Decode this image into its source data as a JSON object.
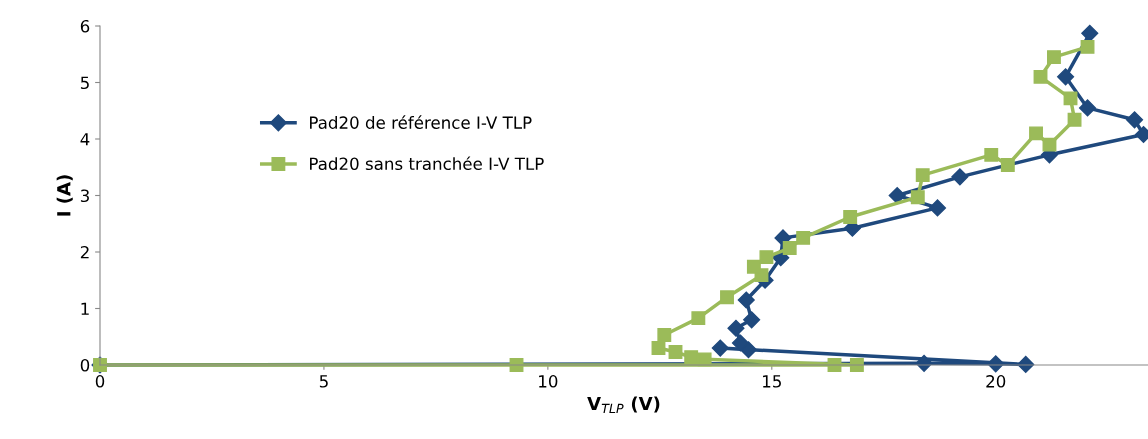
{
  "chart_data": {
    "type": "line",
    "xlabel": "V$_{TLP}$ (V)",
    "ylabel": "I (A)",
    "xlim": [
      0,
      23.4
    ],
    "xticks": [
      0,
      5,
      10,
      15,
      20
    ],
    "ylim": [
      0,
      6
    ],
    "yticks": [
      0,
      1,
      2,
      3,
      4,
      5,
      6
    ],
    "grid": false,
    "legend": "left",
    "line_style": "solid",
    "series": [
      {
        "name": "Pad20 de référence I-V TLP",
        "color": "#1f497d",
        "marker": "diamond",
        "x": [
          0,
          18.4,
          20.0,
          20.67,
          13.85,
          14.48,
          14.3,
          14.2,
          14.55,
          14.43,
          14.85,
          15.2,
          15.25,
          16.8,
          18.7,
          17.8,
          19.2,
          21.2,
          23.3,
          23.1,
          22.05,
          21.56,
          22.1
        ],
        "values": [
          0,
          0.03,
          0.02,
          0.01,
          0.3,
          0.27,
          0.39,
          0.65,
          0.8,
          1.15,
          1.5,
          1.9,
          2.25,
          2.42,
          2.78,
          3.0,
          3.33,
          3.72,
          4.08,
          4.34,
          4.55,
          5.1,
          5.87
        ]
      },
      {
        "name": "Pad20 sans tranchée I-V TLP",
        "color": "#9bbb59",
        "marker": "square",
        "x": [
          0,
          9.3,
          16.4,
          16.9,
          13.5,
          13.2,
          12.85,
          12.47,
          12.6,
          13.36,
          14.0,
          14.77,
          14.6,
          14.88,
          15.4,
          15.7,
          16.75,
          18.26,
          18.37,
          19.9,
          20.27,
          20.9,
          21.2,
          21.76,
          21.67,
          21.0,
          21.3,
          22.05
        ],
        "values": [
          0,
          0,
          0,
          0,
          0.1,
          0.14,
          0.23,
          0.3,
          0.53,
          0.83,
          1.2,
          1.59,
          1.74,
          1.91,
          2.07,
          2.25,
          2.62,
          2.97,
          3.36,
          3.72,
          3.54,
          4.1,
          3.9,
          4.34,
          4.72,
          5.1,
          5.45,
          5.63
        ]
      }
    ]
  }
}
